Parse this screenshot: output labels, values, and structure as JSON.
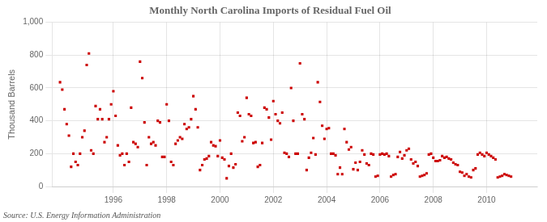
{
  "chart_data": {
    "type": "scatter",
    "title": "Monthly North Carolina Imports of Residual Fuel Oil",
    "ylabel": "Thousand Barrels",
    "annotation": "Source: U.S. Energy Information Administration",
    "color": "#cc0000",
    "marker": "square",
    "grid": true,
    "xlim": [
      1993.7,
      2011.9
    ],
    "xticks": [
      1996,
      1998,
      2000,
      2002,
      2004,
      2006,
      2008,
      2010
    ],
    "ylim": [
      0,
      1000
    ],
    "yticks": [
      0,
      200,
      400,
      600,
      800,
      {
        "value": 1000,
        "label": "1,000"
      }
    ],
    "x": [
      1994,
      1994.083333,
      1994.166667,
      1994.25,
      1994.333333,
      1994.416667,
      1994.5,
      1994.583333,
      1994.666667,
      1994.75,
      1994.833333,
      1994.916667,
      1995,
      1995.083333,
      1995.166667,
      1995.25,
      1995.333333,
      1995.416667,
      1995.5,
      1995.583333,
      1995.666667,
      1995.75,
      1995.833333,
      1995.916667,
      1996,
      1996.083333,
      1996.166667,
      1996.25,
      1996.333333,
      1996.416667,
      1996.5,
      1996.583333,
      1996.666667,
      1996.75,
      1996.833333,
      1996.916667,
      1997,
      1997.083333,
      1997.166667,
      1997.25,
      1997.333333,
      1997.416667,
      1997.5,
      1997.583333,
      1997.666667,
      1997.75,
      1997.833333,
      1997.916667,
      1998,
      1998.083333,
      1998.166667,
      1998.25,
      1998.333333,
      1998.416667,
      1998.5,
      1998.583333,
      1998.666667,
      1998.75,
      1998.833333,
      1998.916667,
      1999,
      1999.083333,
      1999.166667,
      1999.25,
      1999.333333,
      1999.416667,
      1999.5,
      1999.583333,
      1999.666667,
      1999.75,
      1999.833333,
      1999.916667,
      2000,
      2000.083333,
      2000.166667,
      2000.25,
      2000.333333,
      2000.416667,
      2000.5,
      2000.583333,
      2000.666667,
      2000.75,
      2000.833333,
      2000.916667,
      2001,
      2001.083333,
      2001.166667,
      2001.25,
      2001.333333,
      2001.416667,
      2001.5,
      2001.583333,
      2001.666667,
      2001.75,
      2001.833333,
      2001.916667,
      2002,
      2002.083333,
      2002.166667,
      2002.25,
      2002.333333,
      2002.416667,
      2002.5,
      2002.583333,
      2002.666667,
      2002.75,
      2002.833333,
      2002.916667,
      2003,
      2003.083333,
      2003.166667,
      2003.25,
      2003.333333,
      2003.416667,
      2003.5,
      2003.583333,
      2003.666667,
      2003.75,
      2003.833333,
      2003.916667,
      2004,
      2004.083333,
      2004.166667,
      2004.25,
      2004.333333,
      2004.416667,
      2004.5,
      2004.583333,
      2004.666667,
      2004.75,
      2004.833333,
      2004.916667,
      2005,
      2005.083333,
      2005.166667,
      2005.25,
      2005.333333,
      2005.416667,
      2005.5,
      2005.583333,
      2005.666667,
      2005.75,
      2005.833333,
      2005.916667,
      2006,
      2006.083333,
      2006.166667,
      2006.25,
      2006.333333,
      2006.416667,
      2006.5,
      2006.583333,
      2006.666667,
      2006.75,
      2006.833333,
      2006.916667,
      2007,
      2007.083333,
      2007.166667,
      2007.25,
      2007.333333,
      2007.416667,
      2007.5,
      2007.583333,
      2007.666667,
      2007.75,
      2007.833333,
      2007.916667,
      2008,
      2008.083333,
      2008.166667,
      2008.25,
      2008.333333,
      2008.416667,
      2008.5,
      2008.583333,
      2008.666667,
      2008.75,
      2008.833333,
      2008.916667,
      2009,
      2009.083333,
      2009.166667,
      2009.25,
      2009.333333,
      2009.416667,
      2009.5,
      2009.583333,
      2009.666667,
      2009.75,
      2009.833333,
      2009.916667,
      2010,
      2010.083333,
      2010.166667,
      2010.25,
      2010.333333,
      2010.416667,
      2010.5,
      2010.583333,
      2010.666667,
      2010.75,
      2010.833333,
      2010.916667
    ],
    "values": [
      635,
      590,
      470,
      380,
      310,
      120,
      200,
      150,
      130,
      200,
      300,
      340,
      740,
      810,
      220,
      200,
      490,
      410,
      470,
      410,
      270,
      300,
      410,
      500,
      580,
      430,
      250,
      190,
      200,
      130,
      200,
      150,
      480,
      270,
      260,
      240,
      760,
      660,
      390,
      130,
      300,
      260,
      270,
      250,
      400,
      390,
      180,
      180,
      500,
      400,
      150,
      130,
      260,
      280,
      300,
      290,
      380,
      350,
      360,
      410,
      550,
      470,
      360,
      100,
      130,
      165,
      170,
      185,
      270,
      250,
      245,
      185,
      280,
      175,
      165,
      50,
      125,
      200,
      115,
      135,
      450,
      430,
      275,
      300,
      540,
      440,
      430,
      265,
      270,
      120,
      130,
      265,
      480,
      470,
      420,
      285,
      520,
      440,
      400,
      385,
      450,
      205,
      200,
      180,
      600,
      400,
      200,
      200,
      750,
      440,
      410,
      100,
      175,
      205,
      295,
      195,
      635,
      515,
      370,
      290,
      350,
      355,
      200,
      200,
      190,
      75,
      115,
      75,
      350,
      270,
      225,
      240,
      105,
      145,
      100,
      150,
      220,
      195,
      140,
      130,
      200,
      195,
      60,
      65,
      195,
      200,
      195,
      200,
      185,
      60,
      70,
      75,
      180,
      210,
      170,
      190,
      220,
      230,
      165,
      140,
      150,
      125,
      60,
      65,
      70,
      80,
      195,
      200,
      175,
      155,
      155,
      160,
      185,
      175,
      180,
      170,
      165,
      145,
      135,
      130,
      90,
      85,
      65,
      75,
      60,
      55,
      100,
      110,
      195,
      205,
      195,
      185,
      205,
      195,
      185,
      175,
      165,
      55,
      60,
      65,
      75,
      70,
      65,
      60
    ]
  }
}
